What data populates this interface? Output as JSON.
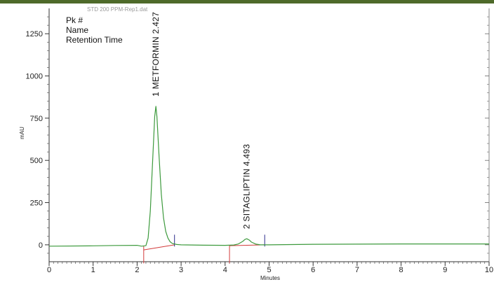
{
  "chart_data": {
    "type": "line",
    "faint_title": "STD 200 PPM-Rep1.dat",
    "xlabel": "Minutes",
    "ylabel": "mAU",
    "xlim": [
      0,
      10
    ],
    "ylim": [
      -100,
      1400
    ],
    "x_ticks": [
      0,
      1,
      2,
      3,
      4,
      5,
      6,
      7,
      8,
      9,
      10
    ],
    "y_ticks": [
      0,
      250,
      500,
      750,
      1000,
      1250
    ],
    "legend_lines": [
      "Pk #",
      "Name",
      "Retention Time"
    ],
    "peaks": [
      {
        "label": "1  METFORMIN  2.427",
        "number": 1,
        "name": "METFORMIN",
        "retention_time": 2.427,
        "height": 820
      },
      {
        "label": "2  SITAGLIPTIN  4.493",
        "number": 2,
        "name": "SITAGLIPTIN",
        "retention_time": 4.493,
        "height": 36
      }
    ],
    "series": [
      {
        "color": "#3d9a3d",
        "x": [
          0,
          1.0,
          1.5,
          2.0,
          2.1,
          2.2,
          2.25,
          2.3,
          2.35,
          2.4,
          2.427,
          2.45,
          2.5,
          2.55,
          2.6,
          2.65,
          2.7,
          2.75,
          2.8,
          2.9,
          3.0,
          3.5,
          4.0,
          4.2,
          4.3,
          4.4,
          4.45,
          4.493,
          4.55,
          4.6,
          4.7,
          4.8,
          5.0,
          6.0,
          7.0,
          8.0,
          9.0,
          10.0
        ],
        "values": [
          -8,
          -6,
          -4,
          -3,
          -8,
          -5,
          40,
          200,
          480,
          760,
          820,
          760,
          520,
          300,
          160,
          80,
          40,
          18,
          8,
          2,
          0,
          -2,
          -3,
          -1,
          5,
          20,
          32,
          36,
          28,
          16,
          4,
          0,
          0,
          3,
          4,
          5,
          5,
          5
        ]
      }
    ],
    "baseline_segments": [
      {
        "x": [
          2.15,
          2.85
        ],
        "y": [
          -30,
          0
        ]
      },
      {
        "x": [
          4.1,
          4.9
        ],
        "y": [
          -5,
          0
        ]
      }
    ],
    "integration_markers": [
      {
        "x": 2.15,
        "color": "#d23b3b"
      },
      {
        "x": 2.85,
        "color": "#2a2a8a"
      },
      {
        "x": 4.1,
        "color": "#d23b3b"
      },
      {
        "x": 4.9,
        "color": "#2a2a8a"
      }
    ],
    "colors": {
      "trace": "#3d9a3d",
      "baseline": "#d23b3b",
      "peak_end": "#2a2a8a",
      "frame": "#4e6a2a"
    }
  }
}
